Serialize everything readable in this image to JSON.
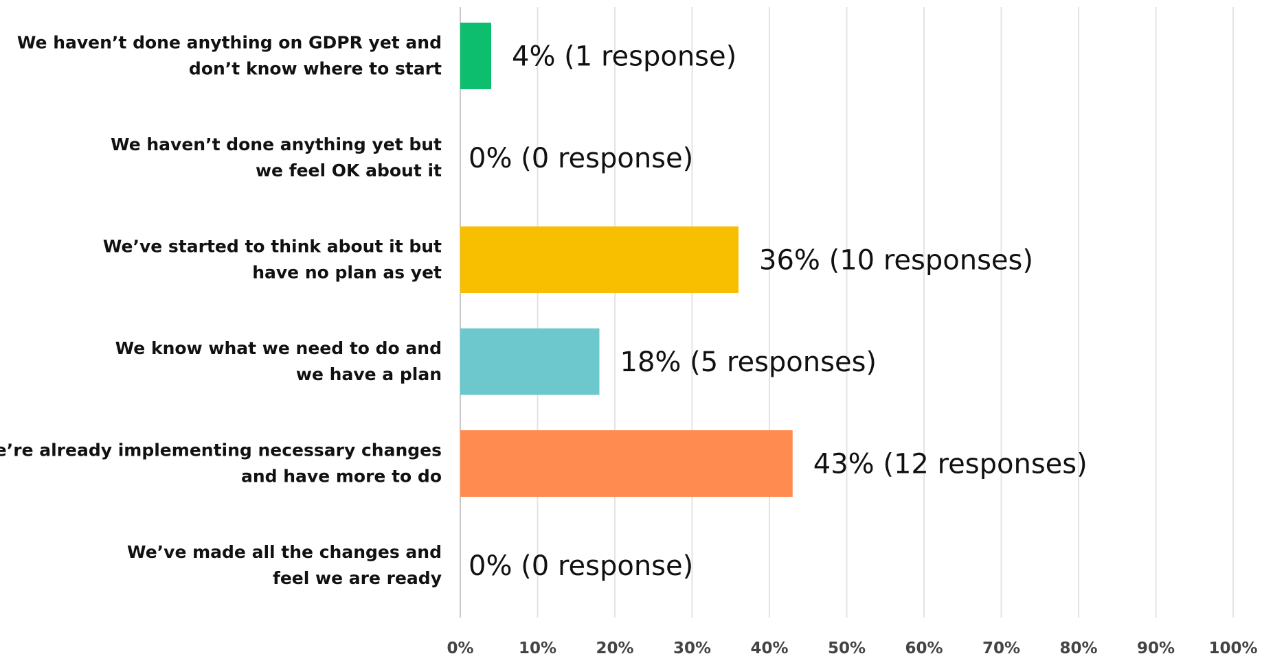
{
  "chart_data": {
    "type": "bar",
    "orientation": "horizontal",
    "title": "",
    "xlabel": "",
    "ylabel": "",
    "xlim": [
      0,
      100
    ],
    "grid": true,
    "legend": "none",
    "categories": [
      [
        "We haven’t done anything on GDPR yet and",
        "don’t know where to start"
      ],
      [
        "We haven’t done anything yet but",
        "we feel OK about it"
      ],
      [
        "We’ve started to think about it but",
        "have no plan as yet"
      ],
      [
        "We know what we need to do and",
        "we have a plan"
      ],
      [
        "We’re already implementing necessary changes",
        "and have more to do"
      ],
      [
        "We’ve made all the changes and",
        "feel we are ready"
      ]
    ],
    "values": [
      4,
      0,
      36,
      18,
      43,
      0
    ],
    "data_labels": [
      "4% (1 response)",
      "0% (0 response)",
      "36% (10 responses)",
      "18% (5 responses)",
      "43% (12 responses)",
      "0% (0 response)"
    ],
    "colors": [
      "#0cbe6e",
      "#0cbe6e",
      "#f8bf00",
      "#6cc8cc",
      "#ff8b50",
      "#ff8b50"
    ],
    "tick_values": [
      0,
      10,
      20,
      30,
      40,
      50,
      60,
      70,
      80,
      90,
      100
    ],
    "tick_labels": [
      "0%",
      "10%",
      "20%",
      "30%",
      "40%",
      "50%",
      "60%",
      "70%",
      "80%",
      "90%",
      "100%"
    ]
  }
}
